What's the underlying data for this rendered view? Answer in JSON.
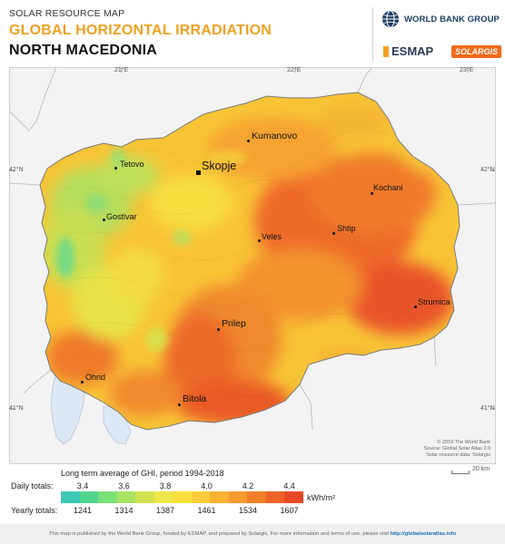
{
  "header": {
    "subtitle": "SOLAR RESOURCE MAP",
    "title": "GLOBAL HORIZONTAL IRRADIATION",
    "country": "NORTH MACEDONIA"
  },
  "logos": {
    "world_bank": "WORLD BANK GROUP",
    "esmap": "ESMAP",
    "solargis": "SOLARGIS"
  },
  "coordinates": {
    "lon_21": "21°E",
    "lon_22": "22°E",
    "lon_23": "23°E",
    "lat_42": "42°N",
    "lat_41": "41°N"
  },
  "cities": {
    "skopje": "Skopje",
    "kumanovo": "Kumanovo",
    "tetovo": "Tetovo",
    "gostivar": "Gostivar",
    "veles": "Veles",
    "kochani": "Kochani",
    "shtip": "Shtip",
    "strumica": "Strumica",
    "prilep": "Prilep",
    "ohrid": "Ohrid",
    "bitola": "Bitola"
  },
  "credits": {
    "line1": "© 2019 The World Bank",
    "line2": "Source: Global Solar Atlas 2.0",
    "line3": "Solar resource data: Solargis"
  },
  "scale": "20 km",
  "legend": {
    "title": "Long term average of GHI, period 1994-2018",
    "daily_label": "Daily totals:",
    "yearly_label": "Yearly totals:",
    "daily_values": [
      "3.4",
      "3.6",
      "3.8",
      "4.0",
      "4.2",
      "4.4"
    ],
    "yearly_values": [
      "1241",
      "1314",
      "1387",
      "1461",
      "1534",
      "1607"
    ],
    "unit": "kWh/m²",
    "colors": [
      "#3ec9b5",
      "#4fd68e",
      "#79e07a",
      "#a9e265",
      "#d2e24f",
      "#eee84a",
      "#f8df3e",
      "#fbcd3a",
      "#f9b232",
      "#f79a2e",
      "#f27e2a",
      "#ee6328",
      "#e84a25"
    ]
  },
  "footer": {
    "text": "This map is published by the World Bank Group, funded by ESMAP, and prepared by Solargis. For more information and terms of use, please visit",
    "link": "http://globalsolaratlas.info"
  }
}
